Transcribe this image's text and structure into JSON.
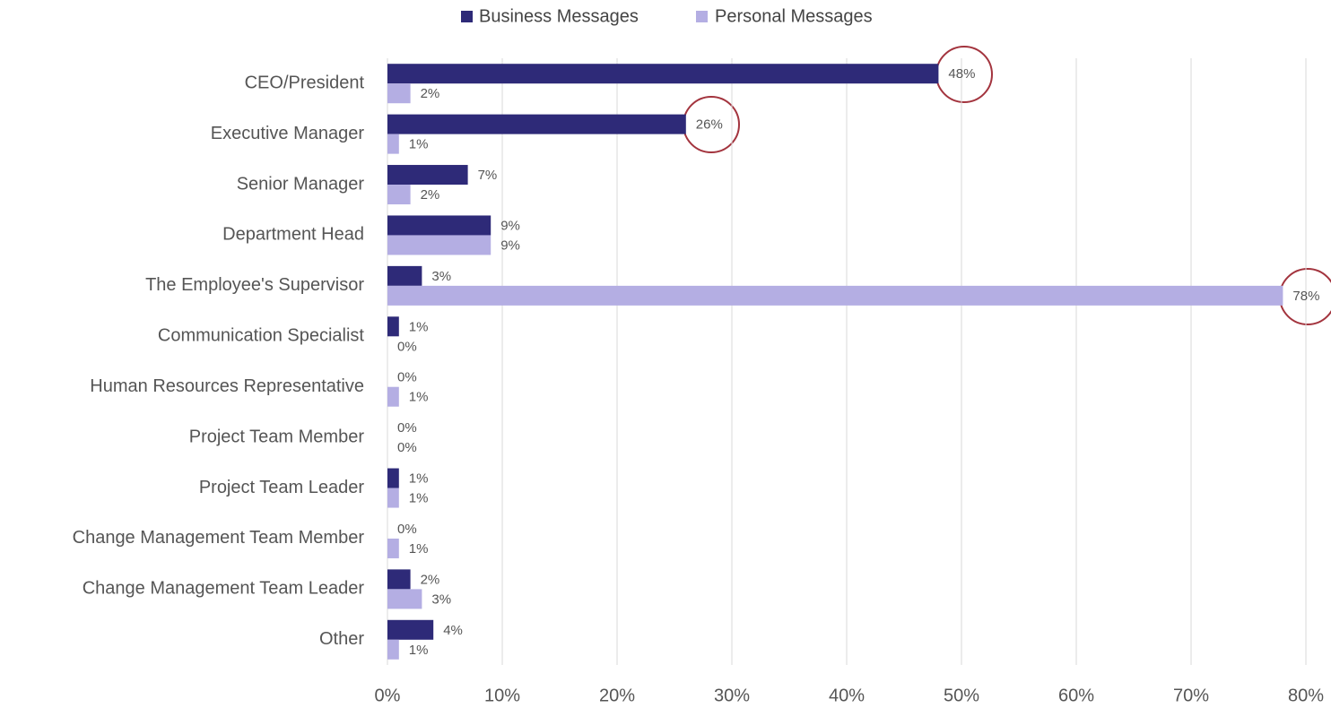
{
  "chart_data": {
    "type": "barh",
    "categories": [
      "CEO/President",
      "Executive Manager",
      "Senior Manager",
      "Department Head",
      "The Employee's Supervisor",
      "Communication Specialist",
      "Human Resources Representative",
      "Project Team Member",
      "Project Team Leader",
      "Change Management Team Member",
      "Change Management Team Leader",
      "Other"
    ],
    "series": [
      {
        "name": "Business Messages",
        "color": "#2e2a78",
        "values": [
          48,
          26,
          7,
          9,
          3,
          1,
          0,
          0,
          1,
          0,
          2,
          4
        ],
        "value_labels": [
          "48%",
          "26%",
          "7%",
          "9%",
          "3%",
          "1%",
          "0%",
          "0%",
          "1%",
          "0%",
          "2%",
          "4%"
        ]
      },
      {
        "name": "Personal Messages",
        "color": "#b4aee3",
        "values": [
          2,
          1,
          2,
          9,
          78,
          0,
          1,
          0,
          1,
          1,
          3,
          1
        ],
        "value_labels": [
          "2%",
          "1%",
          "2%",
          "9%",
          "78%",
          "0%",
          "1%",
          "0%",
          "1%",
          "1%",
          "3%",
          "1%"
        ]
      }
    ],
    "xlim": [
      0,
      80
    ],
    "xticks": [
      {
        "value": 0,
        "label": "0%"
      },
      {
        "value": 10,
        "label": "10%"
      },
      {
        "value": 20,
        "label": "20%"
      },
      {
        "value": 30,
        "label": "30%"
      },
      {
        "value": 40,
        "label": "40%"
      },
      {
        "value": 50,
        "label": "50%"
      },
      {
        "value": 60,
        "label": "60%"
      },
      {
        "value": 70,
        "label": "70%"
      },
      {
        "value": 80,
        "label": "80%"
      }
    ],
    "grid": true,
    "legend": "top"
  }
}
